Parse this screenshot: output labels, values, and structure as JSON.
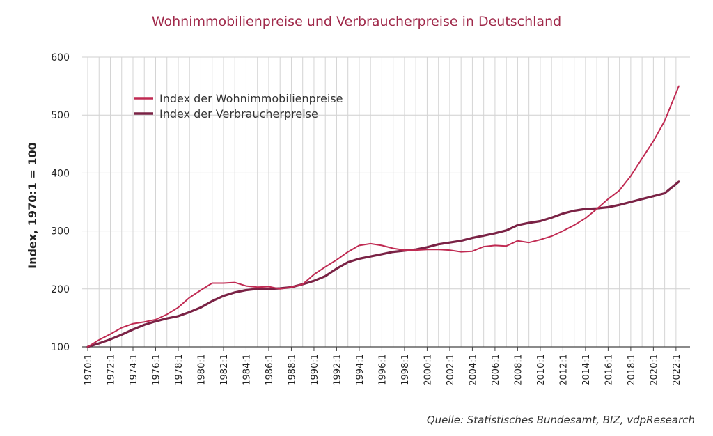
{
  "chart_data": {
    "type": "line",
    "title": "Wohnimmobilienpreise und Verbraucherpreise in Deutschland",
    "xlabel": "",
    "ylabel": "Index, 1970:1 = 100",
    "ylim": [
      100,
      600
    ],
    "yticks": [
      100,
      200,
      300,
      400,
      500,
      600
    ],
    "xlim": [
      1970,
      2022.5
    ],
    "xtick_labels": [
      "1970:1",
      "1972:1",
      "1974:1",
      "1976:1",
      "1978:1",
      "1980:1",
      "1982:1",
      "1984:1",
      "1986:1",
      "1988:1",
      "1990:1",
      "1992:1",
      "1994:1",
      "1996:1",
      "1998:1",
      "2000:1",
      "2002:1",
      "2004:1",
      "2006:1",
      "2008:1",
      "2010:1",
      "2012:1",
      "2014:1",
      "2016:1",
      "2018:1",
      "2020:1",
      "2022:1"
    ],
    "grid": true,
    "legend_position": "top-left",
    "series": [
      {
        "name": "Index der Wohnimmobilienpreise",
        "color": "#c02a52",
        "x": [
          1970,
          1971,
          1972,
          1973,
          1974,
          1975,
          1976,
          1977,
          1978,
          1979,
          1980,
          1981,
          1982,
          1983,
          1984,
          1985,
          1986,
          1987,
          1988,
          1989,
          1990,
          1991,
          1992,
          1993,
          1994,
          1995,
          1996,
          1997,
          1998,
          1999,
          2000,
          2001,
          2002,
          2003,
          2004,
          2005,
          2006,
          2007,
          2008,
          2009,
          2010,
          2011,
          2012,
          2013,
          2014,
          2015,
          2016,
          2017,
          2018,
          2019,
          2020,
          2021,
          2022.25
        ],
        "values": [
          100,
          112,
          122,
          133,
          140,
          143,
          147,
          156,
          168,
          185,
          198,
          210,
          210,
          211,
          205,
          203,
          204,
          200,
          203,
          208,
          225,
          238,
          250,
          264,
          275,
          278,
          275,
          270,
          267,
          267,
          268,
          268,
          267,
          264,
          265,
          273,
          275,
          274,
          283,
          280,
          285,
          291,
          300,
          310,
          322,
          338,
          355,
          370,
          395,
          425,
          455,
          490,
          550
        ]
      },
      {
        "name": "Index der Verbraucherpreise",
        "color": "#7a2245",
        "x": [
          1970,
          1971,
          1972,
          1973,
          1974,
          1975,
          1976,
          1977,
          1978,
          1979,
          1980,
          1981,
          1982,
          1983,
          1984,
          1985,
          1986,
          1987,
          1988,
          1989,
          1990,
          1991,
          1992,
          1993,
          1994,
          1995,
          1996,
          1997,
          1998,
          1999,
          2000,
          2001,
          2002,
          2003,
          2004,
          2005,
          2006,
          2007,
          2008,
          2009,
          2010,
          2011,
          2012,
          2013,
          2014,
          2015,
          2016,
          2017,
          2018,
          2019,
          2020,
          2021,
          2022.25
        ],
        "values": [
          100,
          106,
          113,
          121,
          130,
          138,
          144,
          149,
          153,
          160,
          168,
          179,
          188,
          194,
          198,
          200,
          200,
          201,
          203,
          208,
          214,
          222,
          235,
          246,
          252,
          256,
          260,
          264,
          266,
          268,
          272,
          277,
          280,
          283,
          288,
          292,
          296,
          301,
          310,
          314,
          317,
          323,
          330,
          335,
          338,
          339,
          341,
          345,
          350,
          355,
          360,
          365,
          385
        ]
      }
    ]
  },
  "source": "Quelle: Statistisches Bundesamt, BIZ, vdpResearch"
}
